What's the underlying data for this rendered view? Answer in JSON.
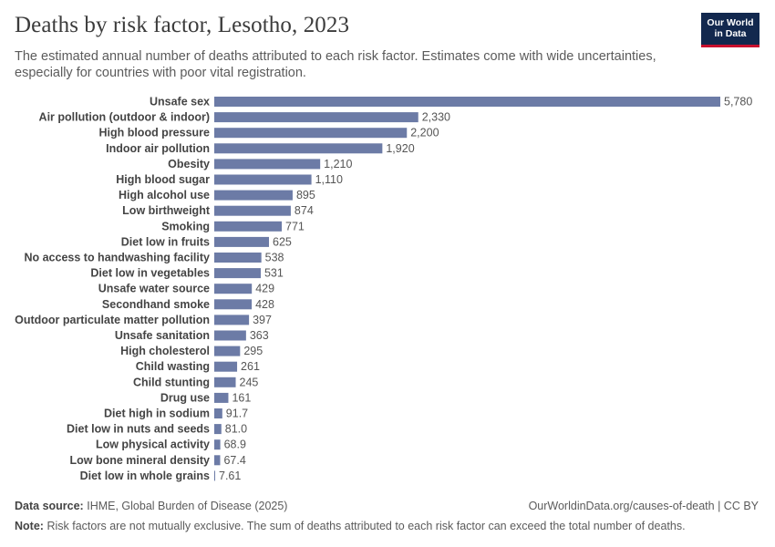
{
  "header": {
    "title": "Deaths by risk factor, Lesotho, 2023",
    "subtitle": "The estimated annual number of deaths attributed to each risk factor. Estimates come with wide uncertainties, especially for countries with poor vital registration."
  },
  "logo": {
    "line1": "Our World",
    "line2": "in Data"
  },
  "footer": {
    "source_label": "Data source:",
    "source_text": "IHME, Global Burden of Disease (2025)",
    "link": "OurWorldinData.org/causes-of-death | CC BY",
    "note_label": "Note:",
    "note_text": "Risk factors are not mutually exclusive. The sum of deaths attributed to each risk factor can exceed the total number of deaths."
  },
  "colors": {
    "bar": "#6c7ba6",
    "logo_bg": "#12284e",
    "logo_accent": "#c8102e"
  },
  "chart_data": {
    "type": "bar",
    "orientation": "horizontal",
    "title": "Deaths by risk factor, Lesotho, 2023",
    "xlabel": "",
    "ylabel": "",
    "xlim": [
      0,
      5780
    ],
    "categories": [
      "Unsafe sex",
      "Air pollution (outdoor & indoor)",
      "High blood pressure",
      "Indoor air pollution",
      "Obesity",
      "High blood sugar",
      "High alcohol use",
      "Low birthweight",
      "Smoking",
      "Diet low in fruits",
      "No access to handwashing facility",
      "Diet low in vegetables",
      "Unsafe water source",
      "Secondhand smoke",
      "Outdoor particulate matter pollution",
      "Unsafe sanitation",
      "High cholesterol",
      "Child wasting",
      "Child stunting",
      "Drug use",
      "Diet high in sodium",
      "Diet low in nuts and seeds",
      "Low physical activity",
      "Low bone mineral density",
      "Diet low in whole grains"
    ],
    "values": [
      5780,
      2330,
      2200,
      1920,
      1210,
      1110,
      895,
      874,
      771,
      625,
      538,
      531,
      429,
      428,
      397,
      363,
      295,
      261,
      245,
      161,
      91.7,
      81.0,
      68.9,
      67.4,
      7.61
    ],
    "value_labels": [
      "5,780",
      "2,330",
      "2,200",
      "1,920",
      "1,210",
      "1,110",
      "895",
      "874",
      "771",
      "625",
      "538",
      "531",
      "429",
      "428",
      "397",
      "363",
      "295",
      "261",
      "245",
      "161",
      "91.7",
      "81.0",
      "68.9",
      "67.4",
      "7.61"
    ]
  }
}
